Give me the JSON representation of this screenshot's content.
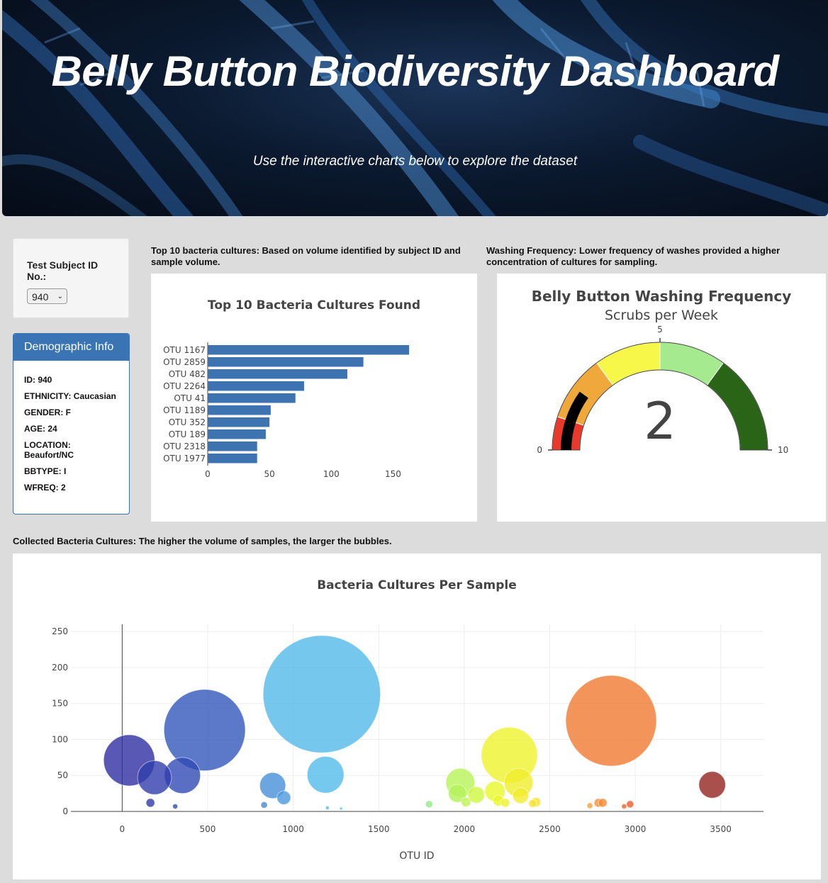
{
  "header": {
    "title": "Belly Button Biodiversity Dashboard",
    "subtitle": "Use the interactive charts below to explore the dataset"
  },
  "selector": {
    "label": "Test Subject ID No.:",
    "selected": "940"
  },
  "demographics": {
    "title": "Demographic Info",
    "rows": [
      "ID: 940",
      "ETHNICITY: Caucasian",
      "GENDER: F",
      "AGE: 24",
      "LOCATION: Beaufort/NC",
      "BBTYPE: I",
      "WFREQ: 2"
    ]
  },
  "captions": {
    "bar": "Top 10 bacteria cultures: Based on volume identified by subject ID and sample volume.",
    "gauge": "Washing Frequency: Lower frequency of washes provided a higher concentration of cultures for sampling.",
    "bubble": "Collected Bacteria Cultures: The higher the volume of samples, the larger the bubbles."
  },
  "chart_data": [
    {
      "type": "bar",
      "orientation": "horizontal",
      "title": "Top 10 Bacteria Cultures Found",
      "categories": [
        "OTU 1167",
        "OTU 2859",
        "OTU 482",
        "OTU 2264",
        "OTU 41",
        "OTU 1189",
        "OTU 352",
        "OTU 189",
        "OTU 2318",
        "OTU 1977"
      ],
      "values": [
        163,
        126,
        113,
        78,
        71,
        51,
        50,
        47,
        40,
        40
      ],
      "xlim": [
        0,
        175
      ],
      "xticks": [
        0,
        50,
        100,
        150
      ],
      "color": "#3d73b0"
    },
    {
      "type": "gauge",
      "title": "Belly Button Washing Frequency",
      "subtitle": "Scrubs per Week",
      "value": 2,
      "range": [
        0,
        10
      ],
      "tick_labels": [
        "0",
        "5",
        "10"
      ],
      "bands": [
        {
          "from": 0,
          "to": 1,
          "color": "#e8392b"
        },
        {
          "from": 1,
          "to": 3,
          "color": "#f0a83a"
        },
        {
          "from": 3,
          "to": 5,
          "color": "#f7f74a"
        },
        {
          "from": 5,
          "to": 7,
          "color": "#a6ea90"
        },
        {
          "from": 7,
          "to": 10,
          "color": "#2a6417"
        }
      ],
      "bar_color": "#000000"
    },
    {
      "type": "scatter",
      "title": "Bacteria Cultures Per Sample",
      "xlabel": "OTU ID",
      "xlim": [
        -300,
        3750
      ],
      "ylim": [
        0,
        260
      ],
      "xticks": [
        0,
        500,
        1000,
        1500,
        2000,
        2500,
        3000,
        3500
      ],
      "yticks": [
        0,
        50,
        100,
        150,
        200,
        250
      ],
      "colorscale": "Earth",
      "points": [
        {
          "x": 41,
          "y": 71
        },
        {
          "x": 189,
          "y": 47
        },
        {
          "x": 352,
          "y": 50
        },
        {
          "x": 482,
          "y": 113
        },
        {
          "x": 165,
          "y": 12
        },
        {
          "x": 310,
          "y": 7
        },
        {
          "x": 830,
          "y": 9
        },
        {
          "x": 880,
          "y": 36
        },
        {
          "x": 945,
          "y": 19
        },
        {
          "x": 1167,
          "y": 163
        },
        {
          "x": 1189,
          "y": 51
        },
        {
          "x": 1200,
          "y": 5
        },
        {
          "x": 1280,
          "y": 4
        },
        {
          "x": 1795,
          "y": 10
        },
        {
          "x": 1977,
          "y": 40
        },
        {
          "x": 1960,
          "y": 25
        },
        {
          "x": 2010,
          "y": 13
        },
        {
          "x": 2070,
          "y": 23
        },
        {
          "x": 2180,
          "y": 28
        },
        {
          "x": 2200,
          "y": 15
        },
        {
          "x": 2240,
          "y": 12
        },
        {
          "x": 2264,
          "y": 78
        },
        {
          "x": 2318,
          "y": 40
        },
        {
          "x": 2330,
          "y": 22
        },
        {
          "x": 2400,
          "y": 11
        },
        {
          "x": 2420,
          "y": 13
        },
        {
          "x": 2735,
          "y": 8
        },
        {
          "x": 2785,
          "y": 12
        },
        {
          "x": 2810,
          "y": 12
        },
        {
          "x": 2859,
          "y": 126
        },
        {
          "x": 2935,
          "y": 7
        },
        {
          "x": 2970,
          "y": 10
        },
        {
          "x": 3450,
          "y": 37
        }
      ]
    }
  ]
}
